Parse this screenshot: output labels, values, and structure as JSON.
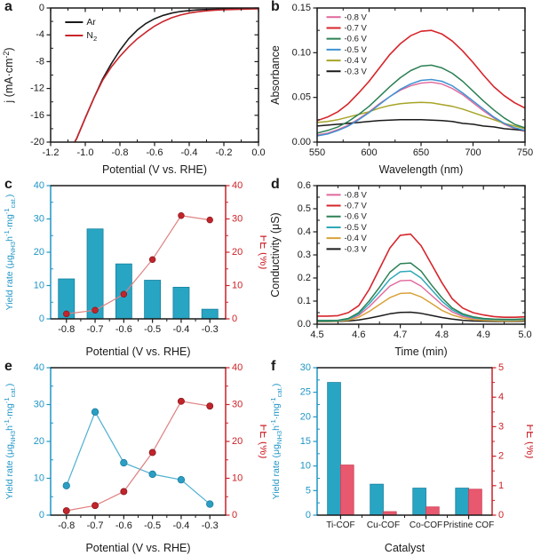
{
  "colors": {
    "black": "#1a1a1a",
    "red": "#c9252b",
    "pink": "#e0679b",
    "green": "#2c8055",
    "blue": "#3f92d2",
    "teal": "#2fa8b8",
    "olive": "#a8a428",
    "gold": "#d8a23a",
    "cyan_bar": "#29a5c4",
    "salmon_bar": "#e8586e",
    "fe_dot": "#c2242b",
    "fe_line": "#e08080",
    "axis_blue": "#1f95c6",
    "axis_red": "#cc2127"
  },
  "chart_data": [
    {
      "panel_label": "a",
      "type": "line",
      "xlabel": "Potential (V vs. RHE)",
      "ylabel": "j (mA·cm^-2^)",
      "xlim": [
        -1.2,
        0
      ],
      "ylim": [
        -20,
        0
      ],
      "xticks": [
        -1.2,
        -1.0,
        -0.8,
        -0.6,
        -0.4,
        -0.2,
        0
      ],
      "xtick_labels": [
        "-1.2",
        "-1.0",
        "-0.8",
        "-0.6",
        "-0.4",
        "-0.2",
        "0.0"
      ],
      "yticks": [
        0,
        -4,
        -8,
        -12,
        -16,
        -20
      ],
      "ytick_labels": [
        "0",
        "-4",
        "-8",
        "-12",
        "-16",
        "-20"
      ],
      "xminor": 0.1,
      "yminor": 2,
      "legend_pos": [
        0.07,
        0.04
      ],
      "series": [
        {
          "name": "Ar",
          "color": "#1a1a1a",
          "width": 1.6,
          "z": 1,
          "points": [
            [
              0,
              -0.08
            ],
            [
              -0.05,
              -0.1
            ],
            [
              -0.1,
              -0.12
            ],
            [
              -0.15,
              -0.13
            ],
            [
              -0.2,
              -0.15
            ],
            [
              -0.25,
              -0.18
            ],
            [
              -0.3,
              -0.22
            ],
            [
              -0.35,
              -0.28
            ],
            [
              -0.4,
              -0.38
            ],
            [
              -0.45,
              -0.52
            ],
            [
              -0.5,
              -0.75
            ],
            [
              -0.55,
              -1.1
            ],
            [
              -0.6,
              -1.6
            ],
            [
              -0.65,
              -2.3
            ],
            [
              -0.7,
              -3.3
            ],
            [
              -0.75,
              -4.6
            ],
            [
              -0.8,
              -6.3
            ],
            [
              -0.85,
              -8.3
            ],
            [
              -0.9,
              -10.6
            ],
            [
              -0.95,
              -13.4
            ],
            [
              -1.0,
              -16.4
            ],
            [
              -1.05,
              -19.5
            ],
            [
              -1.07,
              -20.4
            ]
          ]
        },
        {
          "name": "N~2~",
          "color": "#c9252b",
          "width": 1.6,
          "z": 2,
          "points": [
            [
              0,
              -0.12
            ],
            [
              -0.05,
              -0.15
            ],
            [
              -0.1,
              -0.18
            ],
            [
              -0.15,
              -0.22
            ],
            [
              -0.2,
              -0.27
            ],
            [
              -0.25,
              -0.33
            ],
            [
              -0.3,
              -0.42
            ],
            [
              -0.35,
              -0.55
            ],
            [
              -0.4,
              -0.75
            ],
            [
              -0.45,
              -1.05
            ],
            [
              -0.5,
              -1.45
            ],
            [
              -0.55,
              -2.0
            ],
            [
              -0.6,
              -2.7
            ],
            [
              -0.65,
              -3.6
            ],
            [
              -0.7,
              -4.6
            ],
            [
              -0.75,
              -5.8
            ],
            [
              -0.8,
              -7.2
            ],
            [
              -0.85,
              -8.8
            ],
            [
              -0.9,
              -10.8
            ],
            [
              -0.95,
              -13.4
            ],
            [
              -1.0,
              -16.4
            ],
            [
              -1.05,
              -19.5
            ],
            [
              -1.07,
              -20.4
            ]
          ]
        }
      ]
    },
    {
      "panel_label": "b",
      "type": "line",
      "xlabel": "Wavelength (nm)",
      "ylabel": "Absorbance",
      "xlim": [
        550,
        750
      ],
      "ylim": [
        0,
        0.15
      ],
      "xticks": [
        550,
        600,
        650,
        700,
        750
      ],
      "xtick_labels": [
        "550",
        "600",
        "650",
        "700",
        "750"
      ],
      "yticks": [
        0,
        0.05,
        0.1,
        0.15
      ],
      "ytick_labels": [
        "0.00",
        "0.05",
        "0.10",
        "0.15"
      ],
      "xminor": 25,
      "yminor": 0.025,
      "legend_pos": [
        0.045,
        0.015
      ],
      "x_start": 550,
      "x_step": 10,
      "series": [
        {
          "name": "-0.8 V",
          "color": "#e0679b",
          "width": 1.4,
          "z": 1,
          "y": [
            0.008,
            0.01,
            0.014,
            0.019,
            0.026,
            0.034,
            0.043,
            0.051,
            0.058,
            0.063,
            0.066,
            0.067,
            0.065,
            0.06,
            0.053,
            0.044,
            0.035,
            0.027,
            0.02,
            0.015,
            0.012
          ]
        },
        {
          "name": "-0.7 V",
          "color": "#d6252b",
          "width": 1.6,
          "z": 6,
          "y": [
            0.024,
            0.028,
            0.034,
            0.043,
            0.055,
            0.068,
            0.083,
            0.098,
            0.11,
            0.119,
            0.124,
            0.125,
            0.121,
            0.113,
            0.102,
            0.089,
            0.075,
            0.062,
            0.052,
            0.044,
            0.038
          ]
        },
        {
          "name": "-0.6 V",
          "color": "#2c8055",
          "width": 1.5,
          "z": 5,
          "y": [
            0.01,
            0.013,
            0.017,
            0.023,
            0.031,
            0.04,
            0.051,
            0.062,
            0.072,
            0.08,
            0.085,
            0.086,
            0.083,
            0.077,
            0.068,
            0.057,
            0.046,
            0.036,
            0.027,
            0.02,
            0.016
          ]
        },
        {
          "name": "-0.5 V",
          "color": "#3f92d2",
          "width": 1.5,
          "z": 4,
          "y": [
            0.007,
            0.009,
            0.013,
            0.018,
            0.025,
            0.033,
            0.042,
            0.051,
            0.059,
            0.065,
            0.069,
            0.07,
            0.068,
            0.063,
            0.055,
            0.046,
            0.037,
            0.028,
            0.021,
            0.016,
            0.013
          ]
        },
        {
          "name": "-0.4 V",
          "color": "#a8a428",
          "width": 1.5,
          "z": 3,
          "y": [
            0.022,
            0.023,
            0.025,
            0.028,
            0.031,
            0.034,
            0.038,
            0.041,
            0.043,
            0.044,
            0.0445,
            0.044,
            0.042,
            0.04,
            0.037,
            0.033,
            0.029,
            0.025,
            0.021,
            0.018,
            0.015
          ]
        },
        {
          "name": "-0.3 V",
          "color": "#1a1a1a",
          "width": 1.5,
          "z": 2,
          "y": [
            0.018,
            0.019,
            0.02,
            0.021,
            0.022,
            0.023,
            0.024,
            0.0245,
            0.025,
            0.025,
            0.025,
            0.0245,
            0.024,
            0.023,
            0.021,
            0.02,
            0.018,
            0.017,
            0.015,
            0.014,
            0.013
          ]
        }
      ]
    },
    {
      "panel_label": "c",
      "type": "bar-line",
      "xlabel": "Potential (V vs. RHE)",
      "ylabel": "Yield rate (μg~NH3~h^-1^·mg^-1^~cat.~)",
      "y2label": "FE (%)",
      "ylabel_size": 10.5,
      "categories": [
        "-0.8",
        "-0.7",
        "-0.6",
        "-0.5",
        "-0.4",
        "-0.3"
      ],
      "ylim": [
        0,
        40
      ],
      "y2lim": [
        0,
        40
      ],
      "yticks": [
        0,
        10,
        20,
        30,
        40
      ],
      "ytick_labels": [
        "0",
        "10",
        "20",
        "30",
        "40"
      ],
      "y2ticks": [
        0,
        10,
        20,
        30,
        40
      ],
      "y2tick_labels": [
        "0",
        "10",
        "20",
        "30",
        "40"
      ],
      "yminor": 5,
      "y2minor": 5,
      "axis_colors": {
        "left": "#1f95c6",
        "right": "#cc2127"
      },
      "bar_color": "#29a5c4",
      "bars": [
        12,
        27,
        16.5,
        11.6,
        9.5,
        2.9
      ],
      "line_color": "#e08080",
      "marker_color": "#c2242b",
      "line_values": [
        1.5,
        2.6,
        7.4,
        17.8,
        31,
        29.7
      ]
    },
    {
      "panel_label": "d",
      "type": "line",
      "xlabel": "Time (min)",
      "ylabel": "Conductivity (μS)",
      "xlim": [
        4.5,
        5.0
      ],
      "ylim": [
        0,
        0.6
      ],
      "xticks": [
        4.5,
        4.6,
        4.7,
        4.8,
        4.9,
        5.0
      ],
      "xtick_labels": [
        "4.5",
        "4.6",
        "4.7",
        "4.8",
        "4.9",
        "5.0"
      ],
      "yticks": [
        0,
        0.1,
        0.2,
        0.3,
        0.4,
        0.5,
        0.6
      ],
      "ytick_labels": [
        "0.0",
        "0.1",
        "0.2",
        "0.3",
        "0.4",
        "0.5",
        "0.6"
      ],
      "xminor": 0.05,
      "yminor": 0.05,
      "legend_pos": [
        0.045,
        0.015
      ],
      "x_start": 4.5,
      "x_step": 0.025,
      "series": [
        {
          "name": "-0.8 V",
          "color": "#e0679b",
          "width": 1.4,
          "z": 1,
          "y": [
            0.013,
            0.013,
            0.014,
            0.02,
            0.038,
            0.075,
            0.12,
            0.165,
            0.188,
            0.19,
            0.165,
            0.125,
            0.085,
            0.053,
            0.034,
            0.025,
            0.02,
            0.018,
            0.017,
            0.017,
            0.019
          ]
        },
        {
          "name": "-0.7 V",
          "color": "#d6252b",
          "width": 1.6,
          "z": 6,
          "y": [
            0.035,
            0.035,
            0.037,
            0.05,
            0.08,
            0.15,
            0.24,
            0.33,
            0.385,
            0.39,
            0.34,
            0.26,
            0.18,
            0.11,
            0.07,
            0.05,
            0.04,
            0.033,
            0.03,
            0.03,
            0.032
          ]
        },
        {
          "name": "-0.6 V",
          "color": "#2c8055",
          "width": 1.5,
          "z": 5,
          "y": [
            0.016,
            0.016,
            0.017,
            0.025,
            0.05,
            0.1,
            0.16,
            0.225,
            0.262,
            0.265,
            0.23,
            0.17,
            0.115,
            0.07,
            0.045,
            0.032,
            0.025,
            0.022,
            0.021,
            0.021,
            0.023
          ]
        },
        {
          "name": "-0.5 V",
          "color": "#2fa8b8",
          "width": 1.5,
          "z": 4,
          "y": [
            0.014,
            0.014,
            0.015,
            0.022,
            0.044,
            0.088,
            0.14,
            0.195,
            0.227,
            0.23,
            0.2,
            0.15,
            0.1,
            0.062,
            0.04,
            0.028,
            0.022,
            0.02,
            0.019,
            0.019,
            0.021
          ]
        },
        {
          "name": "-0.4 V",
          "color": "#d8a23a",
          "width": 1.5,
          "z": 3,
          "y": [
            0.012,
            0.012,
            0.013,
            0.017,
            0.03,
            0.055,
            0.085,
            0.115,
            0.133,
            0.135,
            0.118,
            0.09,
            0.06,
            0.04,
            0.027,
            0.02,
            0.017,
            0.015,
            0.014,
            0.014,
            0.016
          ]
        },
        {
          "name": "-0.3 V",
          "color": "#1a1a1a",
          "width": 1.5,
          "z": 2,
          "y": [
            0.011,
            0.011,
            0.012,
            0.014,
            0.018,
            0.026,
            0.035,
            0.045,
            0.051,
            0.052,
            0.047,
            0.038,
            0.029,
            0.022,
            0.017,
            0.014,
            0.013,
            0.012,
            0.012,
            0.012,
            0.013
          ]
        }
      ]
    },
    {
      "panel_label": "e",
      "type": "line2",
      "xlabel": "Potential (V vs. RHE)",
      "ylabel": "Yield rate (μg~NH3~h^-1^·mg^-1^~cat.~)",
      "y2label": "FE (%)",
      "ylabel_size": 10.5,
      "categories": [
        "-0.8",
        "-0.7",
        "-0.6",
        "-0.5",
        "-0.4",
        "-0.3"
      ],
      "ylim": [
        0,
        40
      ],
      "y2lim": [
        0,
        40
      ],
      "yticks": [
        0,
        10,
        20,
        30,
        40
      ],
      "ytick_labels": [
        "0",
        "10",
        "20",
        "30",
        "40"
      ],
      "y2ticks": [
        0,
        10,
        20,
        30,
        40
      ],
      "y2tick_labels": [
        "0",
        "10",
        "20",
        "30",
        "40"
      ],
      "yminor": 5,
      "y2minor": 5,
      "axis_colors": {
        "left": "#1f95c6",
        "right": "#cc2127"
      },
      "series_left": {
        "name": "Yield rate",
        "line": "#4fb0d0",
        "marker": "#2b9ec3",
        "values": [
          8,
          28,
          14.2,
          11.1,
          9.6,
          3
        ]
      },
      "series_right": {
        "name": "FE",
        "line": "#e08080",
        "marker": "#c2242b",
        "values": [
          1.2,
          2.6,
          6.4,
          17,
          30.9,
          29.6
        ]
      }
    },
    {
      "panel_label": "f",
      "type": "bar2",
      "xlabel": "Catalyst",
      "ylabel": "Yield rate (μg~NH3~h^-1^·mg^-1^~cat.~)",
      "y2label": "FE (%)",
      "ylabel_size": 10.5,
      "xtick_size": 10,
      "categories": [
        "Ti-COF",
        "Cu-COF",
        "Co-COF",
        "Pristine COF"
      ],
      "ylim": [
        0,
        30
      ],
      "y2lim": [
        0,
        5
      ],
      "yticks": [
        0,
        5,
        10,
        15,
        20,
        25,
        30
      ],
      "ytick_labels": [
        "0",
        "5",
        "10",
        "15",
        "20",
        "25",
        "30"
      ],
      "y2ticks": [
        0,
        1,
        2,
        3,
        4,
        5
      ],
      "y2tick_labels": [
        "0",
        "1",
        "2",
        "3",
        "4",
        "5"
      ],
      "yminor": 2.5,
      "y2minor": 0.5,
      "axis_colors": {
        "left": "#1f95c6",
        "right": "#cc2127"
      },
      "bars_left": {
        "color": "#29a5c4",
        "edge": "#15809f",
        "values": [
          27,
          6.3,
          5.5,
          5.5
        ]
      },
      "bars_right": {
        "color": "#e8586e",
        "edge": "#cf4256",
        "values": [
          1.7,
          0.12,
          0.28,
          0.88
        ]
      }
    }
  ]
}
